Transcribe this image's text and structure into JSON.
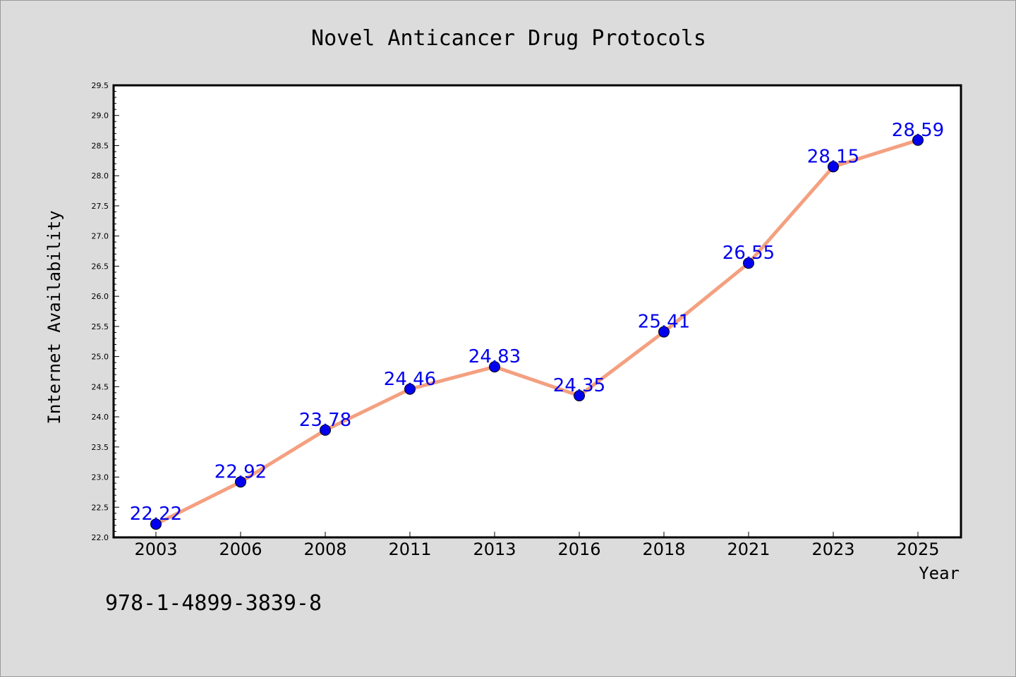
{
  "footer": {
    "isbn": "978-1-4899-3839-8"
  },
  "colors": {
    "line": "#f4a080",
    "marker": "#0000ee",
    "label": "#0000ee",
    "plot_bg": "#ffffff",
    "page_bg": "#dcdcdc"
  },
  "chart_data": {
    "type": "line",
    "title": "Novel Anticancer Drug Protocols",
    "xlabel": "Year",
    "ylabel": "Internet Availability",
    "categories": [
      "2003",
      "2006",
      "2008",
      "2011",
      "2013",
      "2016",
      "2018",
      "2021",
      "2023",
      "2025"
    ],
    "series": [
      {
        "values": [
          22.22,
          22.92,
          23.78,
          24.46,
          24.83,
          24.35,
          25.41,
          26.55,
          28.15,
          28.59
        ]
      }
    ],
    "ylim": [
      22.0,
      29.5
    ],
    "yticks": [
      "22.0",
      "22.5",
      "23.0",
      "23.5",
      "24.0",
      "24.5",
      "25.0",
      "25.5",
      "26.0",
      "26.5",
      "27.0",
      "27.5",
      "28.0",
      "28.5",
      "29.0",
      "29.5"
    ],
    "data_labels": [
      "22.22",
      "22.92",
      "23.78",
      "24.46",
      "24.83",
      "24.35",
      "25.41",
      "26.55",
      "28.15",
      "28.59"
    ],
    "grid": false,
    "legend": "none"
  }
}
